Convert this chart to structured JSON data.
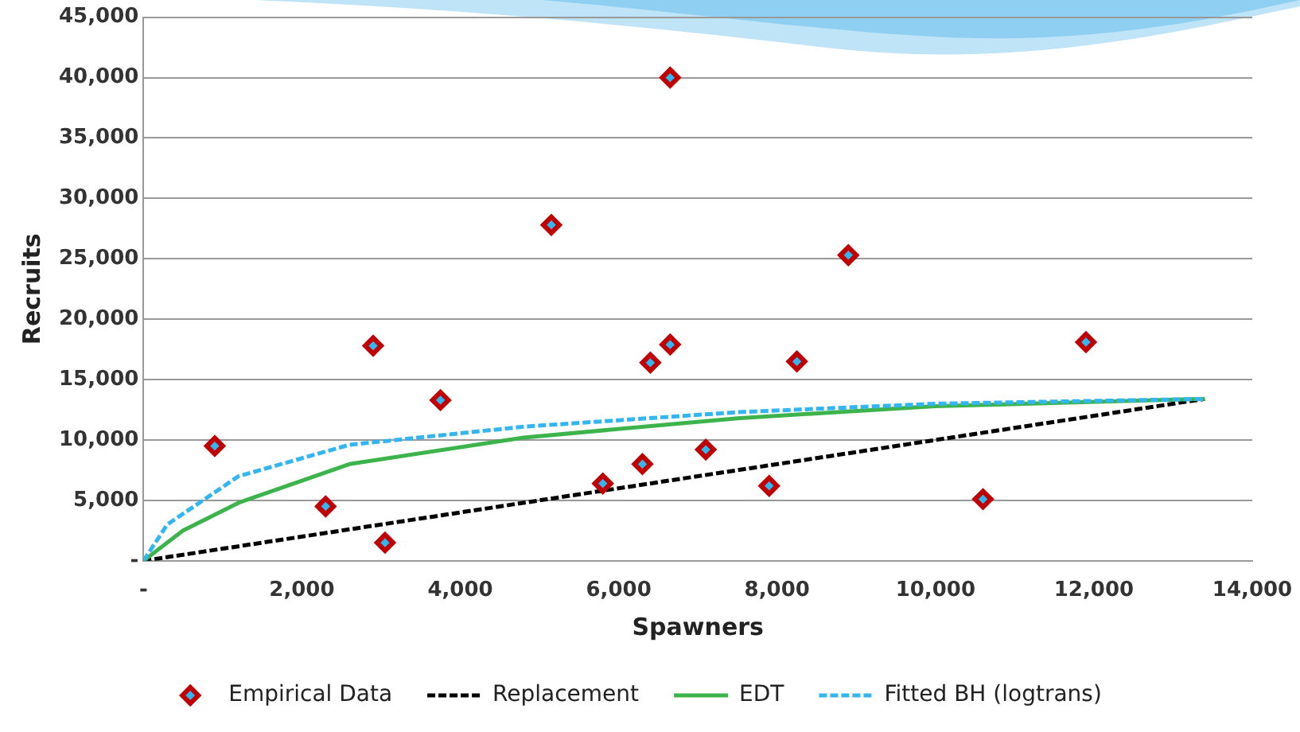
{
  "chart_data": {
    "type": "scatter",
    "xlabel": "Spawners",
    "ylabel": "Recruits",
    "xlim": [
      0,
      14000
    ],
    "xticks": [
      {
        "value": 0,
        "label": "-"
      },
      {
        "value": 2000,
        "label": "2,000"
      },
      {
        "value": 4000,
        "label": "4,000"
      },
      {
        "value": 6000,
        "label": "6,000"
      },
      {
        "value": 8000,
        "label": "8,000"
      },
      {
        "value": 10000,
        "label": "10,000"
      },
      {
        "value": 12000,
        "label": "12,000"
      },
      {
        "value": 14000,
        "label": "14,000"
      }
    ],
    "ylim": [
      0,
      45000
    ],
    "yticks": [
      {
        "value": 0,
        "label": "-"
      },
      {
        "value": 5000,
        "label": "5,000"
      },
      {
        "value": 10000,
        "label": "10,000"
      },
      {
        "value": 15000,
        "label": "15,000"
      },
      {
        "value": 20000,
        "label": "20,000"
      },
      {
        "value": 25000,
        "label": "25,000"
      },
      {
        "value": 30000,
        "label": "30,000"
      },
      {
        "value": 35000,
        "label": "35,000"
      },
      {
        "value": 40000,
        "label": "40,000"
      },
      {
        "value": 45000,
        "label": "45,000"
      }
    ],
    "grid": "y",
    "legend": "bottom",
    "series": [
      {
        "name": "Empirical Data",
        "marker": "diamond",
        "color": "#c00000",
        "x": [
          900,
          2300,
          2900,
          3050,
          3750,
          5150,
          5800,
          6300,
          6400,
          6650,
          6650,
          7100,
          7900,
          8250,
          8900,
          10600,
          11900
        ],
        "values": [
          9500,
          4500,
          17800,
          1500,
          13300,
          27800,
          6400,
          8000,
          16400,
          40000,
          17900,
          9200,
          6200,
          16500,
          25300,
          5100,
          18100
        ]
      },
      {
        "name": "Replacement",
        "type": "line",
        "marker": "none",
        "line_style": "dashed",
        "color": "#000000",
        "x": [
          0,
          13400
        ],
        "values": [
          0,
          13400
        ]
      },
      {
        "name": "EDT",
        "type": "line",
        "marker": "none",
        "line_style": "solid",
        "color": "#3cb44b",
        "x": [
          0,
          500,
          1200,
          2600,
          4800,
          7500,
          10000,
          13400
        ],
        "values": [
          0,
          2500,
          4800,
          8000,
          10200,
          11800,
          12800,
          13400
        ]
      },
      {
        "name": "Fitted BH (logtrans)",
        "type": "line",
        "marker": "none",
        "line_style": "dashed",
        "color": "#33b5f0",
        "x": [
          0,
          300,
          1200,
          2600,
          4800,
          7500,
          10000,
          13400
        ],
        "values": [
          0,
          3000,
          7000,
          9600,
          11100,
          12300,
          13000,
          13400
        ]
      }
    ]
  }
}
